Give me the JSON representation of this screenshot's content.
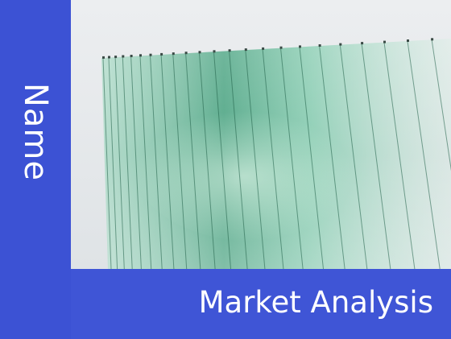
{
  "slide": {
    "side_title": "Name",
    "main_title": "Market Analysis"
  },
  "photo": {
    "subject": "glass-panels-icon"
  },
  "colors": {
    "band": "#3f55d6",
    "text": "#ffffff",
    "glass_tint": "#4fb08a"
  }
}
